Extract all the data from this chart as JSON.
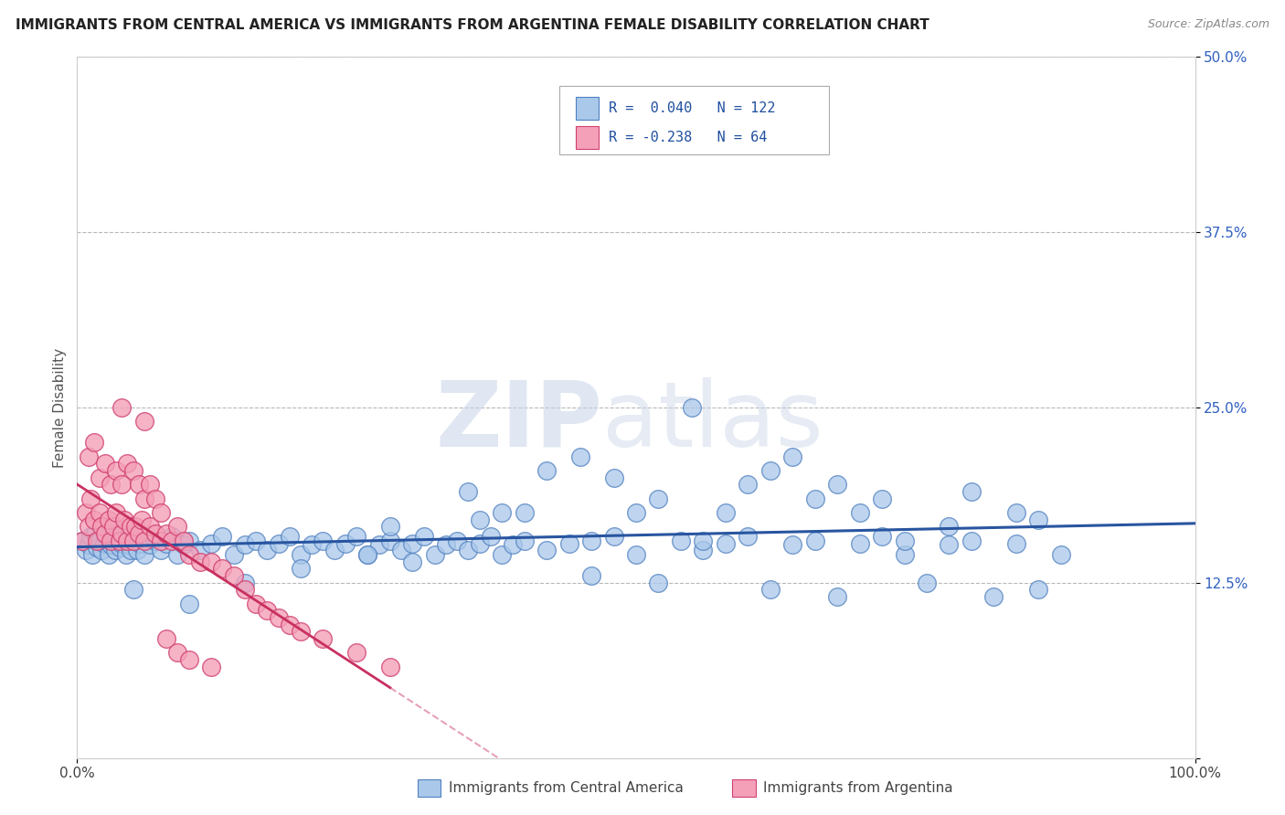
{
  "title": "IMMIGRANTS FROM CENTRAL AMERICA VS IMMIGRANTS FROM ARGENTINA FEMALE DISABILITY CORRELATION CHART",
  "source": "Source: ZipAtlas.com",
  "ylabel": "Female Disability",
  "legend_label1": "Immigrants from Central America",
  "legend_label2": "Immigrants from Argentina",
  "R1": 0.04,
  "N1": 122,
  "R2": -0.238,
  "N2": 64,
  "color1": "#aac8ea",
  "color2": "#f4a0b8",
  "edge_color1": "#5080c0",
  "edge_color2": "#d04070",
  "line_color1": "#2855a0",
  "line_color2": "#c83060",
  "watermark": "ZIPatlas",
  "xlim": [
    0.0,
    1.0
  ],
  "ylim": [
    0.0,
    0.5
  ],
  "blue_x": [
    0.005,
    0.008,
    0.01,
    0.012,
    0.014,
    0.016,
    0.018,
    0.02,
    0.022,
    0.024,
    0.026,
    0.028,
    0.03,
    0.032,
    0.034,
    0.036,
    0.038,
    0.04,
    0.042,
    0.044,
    0.046,
    0.048,
    0.05,
    0.052,
    0.054,
    0.056,
    0.058,
    0.06,
    0.065,
    0.07,
    0.075,
    0.08,
    0.085,
    0.09,
    0.095,
    0.1,
    0.11,
    0.12,
    0.13,
    0.14,
    0.15,
    0.16,
    0.17,
    0.18,
    0.19,
    0.2,
    0.21,
    0.22,
    0.23,
    0.24,
    0.25,
    0.26,
    0.27,
    0.28,
    0.29,
    0.3,
    0.31,
    0.32,
    0.33,
    0.34,
    0.35,
    0.36,
    0.37,
    0.38,
    0.39,
    0.4,
    0.42,
    0.44,
    0.46,
    0.48,
    0.5,
    0.52,
    0.54,
    0.56,
    0.58,
    0.6,
    0.62,
    0.64,
    0.66,
    0.68,
    0.7,
    0.72,
    0.74,
    0.76,
    0.78,
    0.8,
    0.82,
    0.84,
    0.86,
    0.88,
    0.55,
    0.45,
    0.35,
    0.48,
    0.38,
    0.28,
    0.6,
    0.52,
    0.42,
    0.64,
    0.58,
    0.68,
    0.74,
    0.8,
    0.86,
    0.5,
    0.4,
    0.3,
    0.2,
    0.15,
    0.1,
    0.05,
    0.72,
    0.78,
    0.84,
    0.62,
    0.66,
    0.7,
    0.56,
    0.46,
    0.36,
    0.26
  ],
  "blue_y": [
    0.155,
    0.148,
    0.152,
    0.158,
    0.145,
    0.16,
    0.15,
    0.155,
    0.148,
    0.153,
    0.158,
    0.145,
    0.152,
    0.16,
    0.148,
    0.155,
    0.15,
    0.153,
    0.158,
    0.145,
    0.152,
    0.148,
    0.155,
    0.16,
    0.148,
    0.153,
    0.158,
    0.145,
    0.152,
    0.155,
    0.148,
    0.153,
    0.158,
    0.145,
    0.152,
    0.155,
    0.148,
    0.153,
    0.158,
    0.145,
    0.152,
    0.155,
    0.148,
    0.153,
    0.158,
    0.145,
    0.152,
    0.155,
    0.148,
    0.153,
    0.158,
    0.145,
    0.152,
    0.155,
    0.148,
    0.153,
    0.158,
    0.145,
    0.152,
    0.155,
    0.148,
    0.153,
    0.158,
    0.145,
    0.152,
    0.155,
    0.148,
    0.153,
    0.13,
    0.158,
    0.145,
    0.125,
    0.155,
    0.148,
    0.153,
    0.158,
    0.12,
    0.152,
    0.155,
    0.115,
    0.153,
    0.158,
    0.145,
    0.125,
    0.152,
    0.155,
    0.115,
    0.153,
    0.12,
    0.145,
    0.25,
    0.215,
    0.19,
    0.2,
    0.175,
    0.165,
    0.195,
    0.185,
    0.205,
    0.215,
    0.175,
    0.195,
    0.155,
    0.19,
    0.17,
    0.175,
    0.175,
    0.14,
    0.135,
    0.125,
    0.11,
    0.12,
    0.185,
    0.165,
    0.175,
    0.205,
    0.185,
    0.175,
    0.155,
    0.155,
    0.17,
    0.145
  ],
  "pink_x": [
    0.005,
    0.008,
    0.01,
    0.012,
    0.015,
    0.018,
    0.02,
    0.022,
    0.025,
    0.028,
    0.03,
    0.032,
    0.035,
    0.038,
    0.04,
    0.042,
    0.045,
    0.048,
    0.05,
    0.052,
    0.055,
    0.058,
    0.06,
    0.065,
    0.07,
    0.075,
    0.08,
    0.085,
    0.09,
    0.095,
    0.1,
    0.11,
    0.12,
    0.13,
    0.14,
    0.15,
    0.16,
    0.17,
    0.18,
    0.19,
    0.2,
    0.22,
    0.25,
    0.28,
    0.01,
    0.015,
    0.02,
    0.025,
    0.03,
    0.035,
    0.04,
    0.045,
    0.05,
    0.055,
    0.06,
    0.065,
    0.07,
    0.075,
    0.08,
    0.09,
    0.1,
    0.12,
    0.04,
    0.06
  ],
  "pink_y": [
    0.155,
    0.175,
    0.165,
    0.185,
    0.17,
    0.155,
    0.175,
    0.165,
    0.16,
    0.17,
    0.155,
    0.165,
    0.175,
    0.155,
    0.16,
    0.17,
    0.155,
    0.165,
    0.155,
    0.165,
    0.16,
    0.17,
    0.155,
    0.165,
    0.16,
    0.155,
    0.16,
    0.155,
    0.165,
    0.155,
    0.145,
    0.14,
    0.14,
    0.135,
    0.13,
    0.12,
    0.11,
    0.105,
    0.1,
    0.095,
    0.09,
    0.085,
    0.075,
    0.065,
    0.215,
    0.225,
    0.2,
    0.21,
    0.195,
    0.205,
    0.195,
    0.21,
    0.205,
    0.195,
    0.185,
    0.195,
    0.185,
    0.175,
    0.085,
    0.075,
    0.07,
    0.065,
    0.25,
    0.24
  ]
}
